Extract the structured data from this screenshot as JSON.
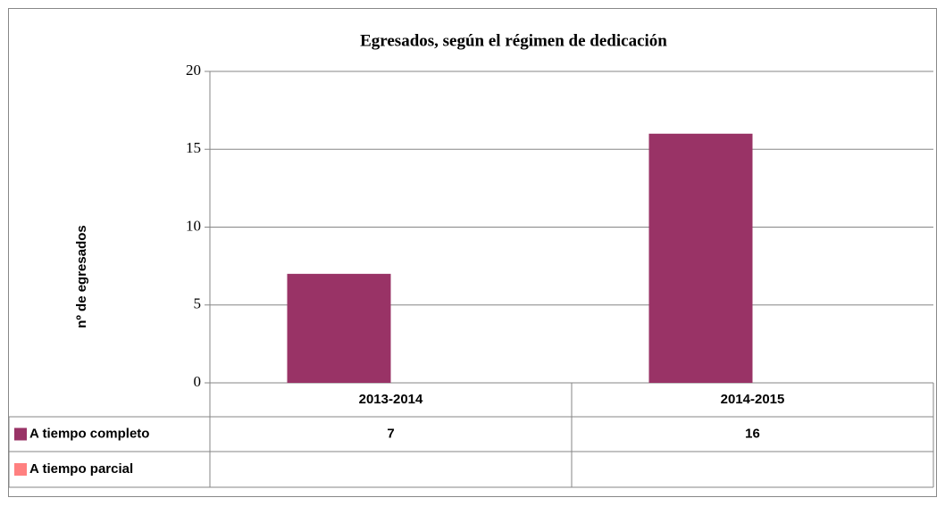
{
  "chart_data": {
    "type": "bar",
    "title": "Egresados, según el régimen de dedicación",
    "y_label": "nº de egresados",
    "categories": [
      "2013-2014",
      "2014-2015"
    ],
    "series": [
      {
        "name": "A tiempo completo",
        "color": "#993366",
        "values": [
          7,
          16
        ]
      },
      {
        "name": "A tiempo parcial",
        "color": "#ff8080",
        "values": [
          null,
          null
        ]
      }
    ],
    "ylim": [
      0,
      20
    ],
    "yticks": [
      0,
      5,
      10,
      15,
      20
    ],
    "grid": true
  }
}
